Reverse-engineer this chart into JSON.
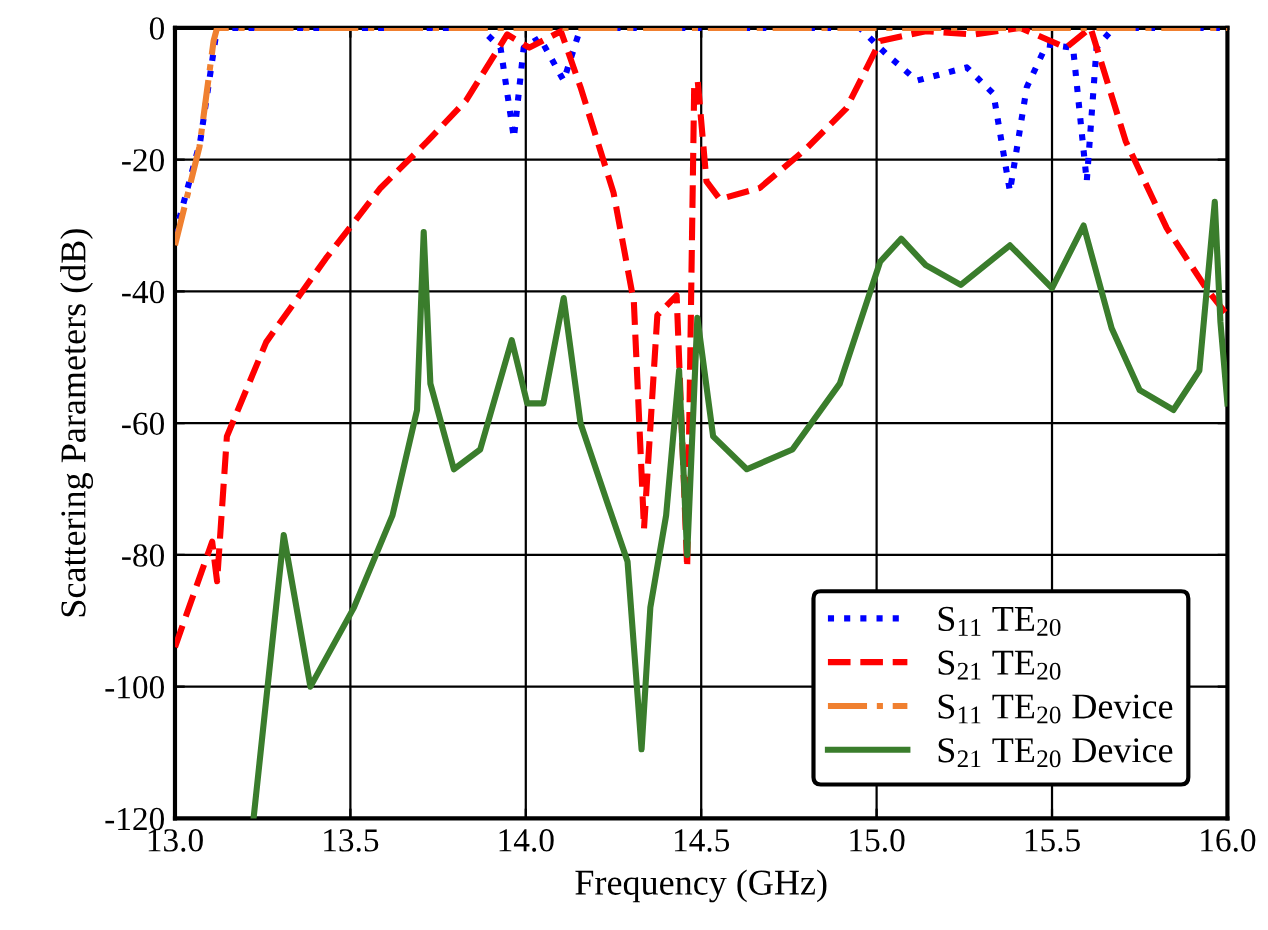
{
  "chart_data": {
    "type": "line",
    "xlabel": "Frequency (GHz)",
    "ylabel": "Scattering Parameters (dB)",
    "xlim": [
      13.0,
      16.0
    ],
    "ylim": [
      -120,
      0
    ],
    "xticks": [
      {
        "value": 13.0,
        "label": "13.0"
      },
      {
        "value": 13.5,
        "label": "13.5"
      },
      {
        "value": 14.0,
        "label": "14.0"
      },
      {
        "value": 14.5,
        "label": "14.5"
      },
      {
        "value": 15.0,
        "label": "15.0"
      },
      {
        "value": 15.5,
        "label": "15.5"
      },
      {
        "value": 16.0,
        "label": "16.0"
      }
    ],
    "yticks": [
      -120,
      -100,
      -80,
      -60,
      -40,
      -20,
      0
    ],
    "grid": true,
    "legend": "bottom right",
    "series": [
      {
        "name": "S$_{11}$ TE$_{20}$",
        "color": "#0000ff",
        "line_style": "dotted",
        "x": [
          13.0,
          13.072,
          13.12,
          13.87,
          13.928,
          13.966,
          13.994,
          14.04,
          14.108,
          14.156,
          14.952,
          15.028,
          15.115,
          15.257,
          15.333,
          15.38,
          15.428,
          15.485,
          15.56,
          15.599,
          15.627,
          15.675,
          16.0
        ],
        "values": [
          -31.4,
          -17.2,
          0,
          0,
          -3,
          -16.7,
          -3,
          -1.5,
          -8,
          0,
          0,
          -4,
          -8,
          -6,
          -10,
          -24.8,
          -9,
          -2.5,
          -3,
          -23.3,
          -3,
          0,
          0
        ]
      },
      {
        "name": "S$_{21}$ TE$_{20}$",
        "color": "#ff0000",
        "line_style": "dashed",
        "x": [
          13.0,
          13.053,
          13.106,
          13.12,
          13.148,
          13.26,
          13.43,
          13.586,
          13.72,
          13.83,
          13.947,
          14.01,
          14.1,
          14.156,
          14.25,
          14.308,
          14.337,
          14.375,
          14.43,
          14.46,
          14.48,
          14.49,
          14.515,
          14.553,
          14.667,
          14.8,
          14.914,
          15.01,
          15.14,
          15.276,
          15.41,
          15.54,
          15.61,
          15.71,
          15.827,
          15.94,
          16.0
        ],
        "values": [
          -94,
          -86,
          -78,
          -84,
          -62,
          -47.7,
          -35,
          -24.3,
          -17.2,
          -11,
          -1,
          -3,
          -0.5,
          -9,
          -25,
          -41.6,
          -76,
          -43.6,
          -40.6,
          -82,
          -9,
          -8,
          -23.3,
          -26,
          -24.3,
          -18.3,
          -12.2,
          -2,
          -0.5,
          -1,
          0,
          -3,
          0,
          -17.2,
          -30.4,
          -39.6,
          -43.6
        ]
      },
      {
        "name": "S$_{11}$ TE$_{20}$ Device",
        "color": "#f08030",
        "line_style": "dashdot",
        "x": [
          13.0,
          13.07,
          13.11,
          13.12,
          16.0
        ],
        "values": [
          -33,
          -18,
          -2,
          0,
          0
        ]
      },
      {
        "name": "S$_{21}$ TE$_{20}$ Device",
        "color": "#3a7d2c",
        "line_style": "solid",
        "x": [
          13.224,
          13.31,
          13.386,
          13.51,
          13.62,
          13.69,
          13.709,
          13.728,
          13.795,
          13.87,
          13.96,
          14.004,
          14.05,
          14.108,
          14.156,
          14.232,
          14.29,
          14.33,
          14.355,
          14.4,
          14.437,
          14.46,
          14.489,
          14.534,
          14.63,
          14.76,
          14.895,
          15.01,
          15.07,
          15.14,
          15.24,
          15.38,
          15.5,
          15.59,
          15.67,
          15.75,
          15.846,
          15.92,
          15.964,
          15.98,
          16.0
        ],
        "values": [
          -120,
          -77,
          -100,
          -88,
          -74,
          -58,
          -31,
          -54,
          -67,
          -64,
          -47.4,
          -57,
          -57,
          -41,
          -60,
          -72,
          -81,
          -109.5,
          -88,
          -74,
          -52,
          -80,
          -44,
          -62,
          -67,
          -64,
          -54,
          -35.5,
          -32,
          -36,
          -39,
          -33,
          -39.5,
          -30,
          -45.6,
          -55,
          -58,
          -52,
          -26.4,
          -44.6,
          -57
        ]
      }
    ]
  }
}
